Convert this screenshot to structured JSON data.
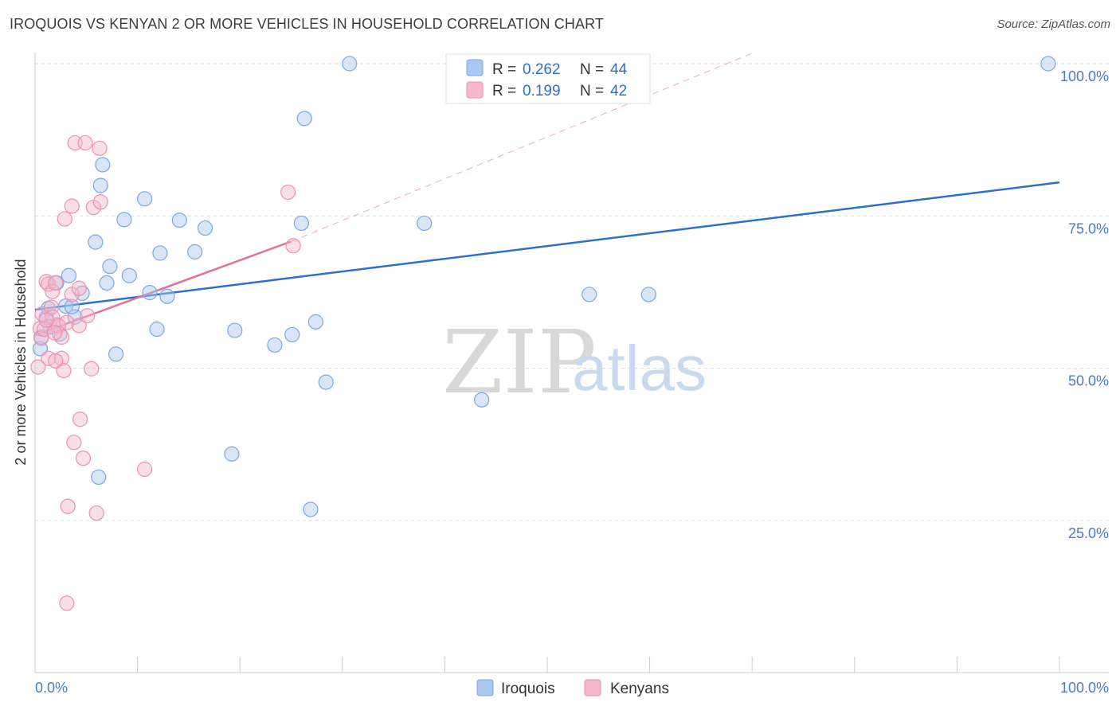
{
  "title": "IROQUOIS VS KENYAN 2 OR MORE VEHICLES IN HOUSEHOLD CORRELATION CHART",
  "source": "Source: ZipAtlas.com",
  "watermark": {
    "zip": "ZIP",
    "atlas": "atlas"
  },
  "colors": {
    "iroquois": "#a8c8f0",
    "iroquois_line": "#2c6fd0",
    "kenyans": "#f5b8cc",
    "kenyans_line": "#e07098",
    "tick": "#4a7ac8"
  },
  "legend": {
    "rows": [
      {
        "r_label": "R =",
        "r_value": "0.262",
        "n_label": "N =",
        "n_value": "44"
      },
      {
        "r_label": "R =",
        "r_value": "0.199",
        "n_label": "N =",
        "n_value": "42"
      }
    ]
  },
  "bottom_legend": {
    "iroquois": "Iroquois",
    "kenyans": "Kenyans"
  },
  "chart_data": {
    "type": "scatter",
    "title": "IROQUOIS VS KENYAN 2 OR MORE VEHICLES IN HOUSEHOLD CORRELATION CHART",
    "xlabel": "",
    "ylabel": "2 or more Vehicles in Household",
    "xlim": [
      0,
      100
    ],
    "ylim": [
      0,
      102
    ],
    "x_tick_labels": [
      {
        "value": 0,
        "label": "0.0%"
      },
      {
        "value": 100,
        "label": "100.0%"
      }
    ],
    "y_tick_labels": [
      {
        "value": 25,
        "label": "25.0%"
      },
      {
        "value": 50,
        "label": "50.0%"
      },
      {
        "value": 75,
        "label": "75.0%"
      },
      {
        "value": 100,
        "label": "100.0%"
      }
    ],
    "series": [
      {
        "name": "Iroquois",
        "points": [
          [
            0.5,
            53.2
          ],
          [
            0.6,
            55.1
          ],
          [
            1.1,
            58.3
          ],
          [
            1.3,
            59.8
          ],
          [
            1.5,
            56.8
          ],
          [
            2.1,
            64.0
          ],
          [
            2.4,
            55.6
          ],
          [
            3.0,
            60.2
          ],
          [
            3.3,
            65.2
          ],
          [
            3.9,
            58.4
          ],
          [
            3.6,
            60.1
          ],
          [
            4.6,
            62.3
          ],
          [
            5.9,
            70.7
          ],
          [
            6.2,
            32.1
          ],
          [
            7.0,
            64.0
          ],
          [
            7.3,
            66.7
          ],
          [
            7.9,
            52.3
          ],
          [
            8.7,
            74.4
          ],
          [
            9.2,
            65.2
          ],
          [
            10.7,
            77.8
          ],
          [
            11.2,
            62.4
          ],
          [
            11.9,
            56.4
          ],
          [
            12.2,
            68.9
          ],
          [
            12.9,
            61.8
          ],
          [
            14.1,
            74.3
          ],
          [
            15.6,
            69.1
          ],
          [
            16.6,
            73.0
          ],
          [
            19.2,
            35.9
          ],
          [
            19.5,
            56.2
          ],
          [
            23.4,
            53.8
          ],
          [
            25.1,
            55.5
          ],
          [
            26.0,
            73.8
          ],
          [
            26.3,
            91.0
          ],
          [
            26.9,
            26.8
          ],
          [
            27.4,
            57.6
          ],
          [
            28.4,
            47.7
          ],
          [
            30.7,
            100.0
          ],
          [
            38.0,
            73.8
          ],
          [
            43.6,
            44.8
          ],
          [
            54.1,
            62.1
          ],
          [
            59.9,
            62.1
          ],
          [
            98.9,
            100.0
          ],
          [
            6.4,
            80.0
          ],
          [
            6.6,
            83.4
          ]
        ]
      },
      {
        "name": "Kenyans",
        "points": [
          [
            0.3,
            50.2
          ],
          [
            0.5,
            56.5
          ],
          [
            0.6,
            54.9
          ],
          [
            0.7,
            58.9
          ],
          [
            0.9,
            56.4
          ],
          [
            1.1,
            64.2
          ],
          [
            1.3,
            51.6
          ],
          [
            1.3,
            63.8
          ],
          [
            1.6,
            60.0
          ],
          [
            1.7,
            58.4
          ],
          [
            1.7,
            62.6
          ],
          [
            2.0,
            64.0
          ],
          [
            2.2,
            57.1
          ],
          [
            2.3,
            56.9
          ],
          [
            2.6,
            55.1
          ],
          [
            2.6,
            51.6
          ],
          [
            2.8,
            49.6
          ],
          [
            2.9,
            74.5
          ],
          [
            3.1,
            57.5
          ],
          [
            3.6,
            62.1
          ],
          [
            3.6,
            76.6
          ],
          [
            3.9,
            87.0
          ],
          [
            3.8,
            37.8
          ],
          [
            4.3,
            63.1
          ],
          [
            4.3,
            57.0
          ],
          [
            4.4,
            41.6
          ],
          [
            4.7,
            35.2
          ],
          [
            4.9,
            87.0
          ],
          [
            5.1,
            58.6
          ],
          [
            5.5,
            49.9
          ],
          [
            5.7,
            76.4
          ],
          [
            6.0,
            26.2
          ],
          [
            6.3,
            86.1
          ],
          [
            6.4,
            77.3
          ],
          [
            3.2,
            27.3
          ],
          [
            3.1,
            11.4
          ],
          [
            10.7,
            33.4
          ],
          [
            24.7,
            78.9
          ],
          [
            25.2,
            70.1
          ],
          [
            2.0,
            51.2
          ],
          [
            1.1,
            57.9
          ],
          [
            1.9,
            55.8
          ]
        ]
      }
    ],
    "trend_lines": [
      {
        "series": "Iroquois",
        "x": [
          0,
          100
        ],
        "y": [
          59.6,
          80.5
        ],
        "style": "solid"
      },
      {
        "series": "Kenyans",
        "x": [
          0,
          25
        ],
        "y": [
          55.4,
          70.8
        ],
        "style": "solid"
      },
      {
        "series": "Kenyans",
        "x": [
          25,
          70
        ],
        "y": [
          70.8,
          101.7
        ],
        "style": "dashed"
      }
    ]
  }
}
